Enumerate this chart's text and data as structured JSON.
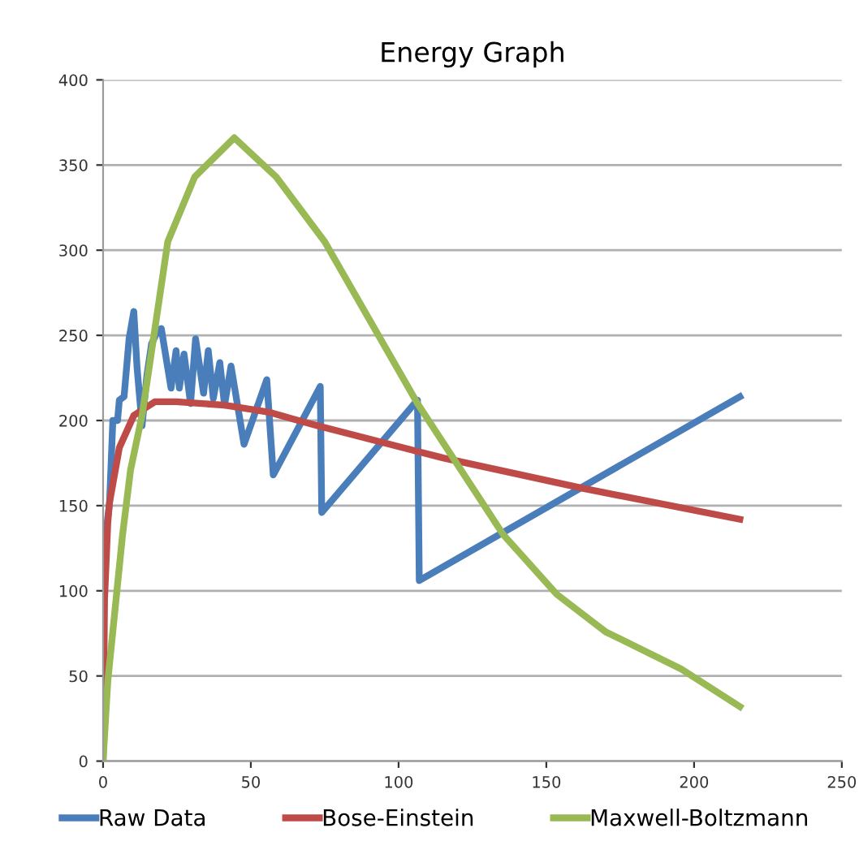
{
  "chart_data": {
    "type": "line",
    "title": "Energy Graph",
    "xlim": [
      0,
      250
    ],
    "xticks": [
      0,
      50,
      100,
      150,
      200,
      250
    ],
    "ylim": [
      0,
      400
    ],
    "yticks": [
      0,
      50,
      100,
      150,
      200,
      250,
      300,
      350,
      400
    ],
    "grid": "y",
    "legend": "bottom",
    "marker": "none",
    "line_style": "solid",
    "series": [
      {
        "name": "Raw Data",
        "color": "#4a7ebb",
        "x": [
          1.1,
          2.2,
          3.3,
          4.9,
          5.5,
          7.1,
          8.8,
          10.4,
          11.5,
          13.2,
          14.8,
          16.4,
          18.6,
          19.7,
          21.4,
          23,
          24.7,
          25.8,
          27.4,
          29.6,
          31.3,
          34,
          35.6,
          37.3,
          39.5,
          41.1,
          43.3,
          47.7,
          55.4,
          57.6,
          73.5,
          74,
          106.4,
          107,
          215.5
        ],
        "values": [
          136,
          152,
          200,
          200,
          212,
          214,
          248,
          264,
          231,
          197,
          226,
          245,
          253,
          254,
          236,
          219,
          241,
          219,
          239,
          210,
          248,
          216,
          241,
          213,
          234,
          209,
          232,
          186,
          224,
          168,
          220,
          146,
          212,
          106,
          214
        ]
      },
      {
        "name": "Bose-Einstein",
        "color": "#be4b48",
        "x": [
          0,
          0.5,
          1.6,
          2.2,
          5.5,
          10.4,
          17.5,
          24.7,
          41.1,
          55.9,
          64.1,
          72.4,
          115.1,
          162.8,
          215.5
        ],
        "values": [
          0,
          95,
          140,
          152,
          184,
          203,
          211,
          211,
          209,
          205,
          201,
          197,
          178,
          160,
          142
        ]
      },
      {
        "name": "Maxwell-Boltzmann",
        "color": "#98b954",
        "x": [
          0,
          1.6,
          6.6,
          9.3,
          13.2,
          21.9,
          31,
          44.4,
          58.6,
          75,
          106.4,
          135.4,
          153.5,
          170,
          195.7,
          215.5
        ],
        "values": [
          0,
          47,
          133,
          171,
          203,
          305,
          343,
          366,
          343,
          305,
          210,
          133,
          98,
          76,
          54,
          32
        ]
      }
    ]
  }
}
